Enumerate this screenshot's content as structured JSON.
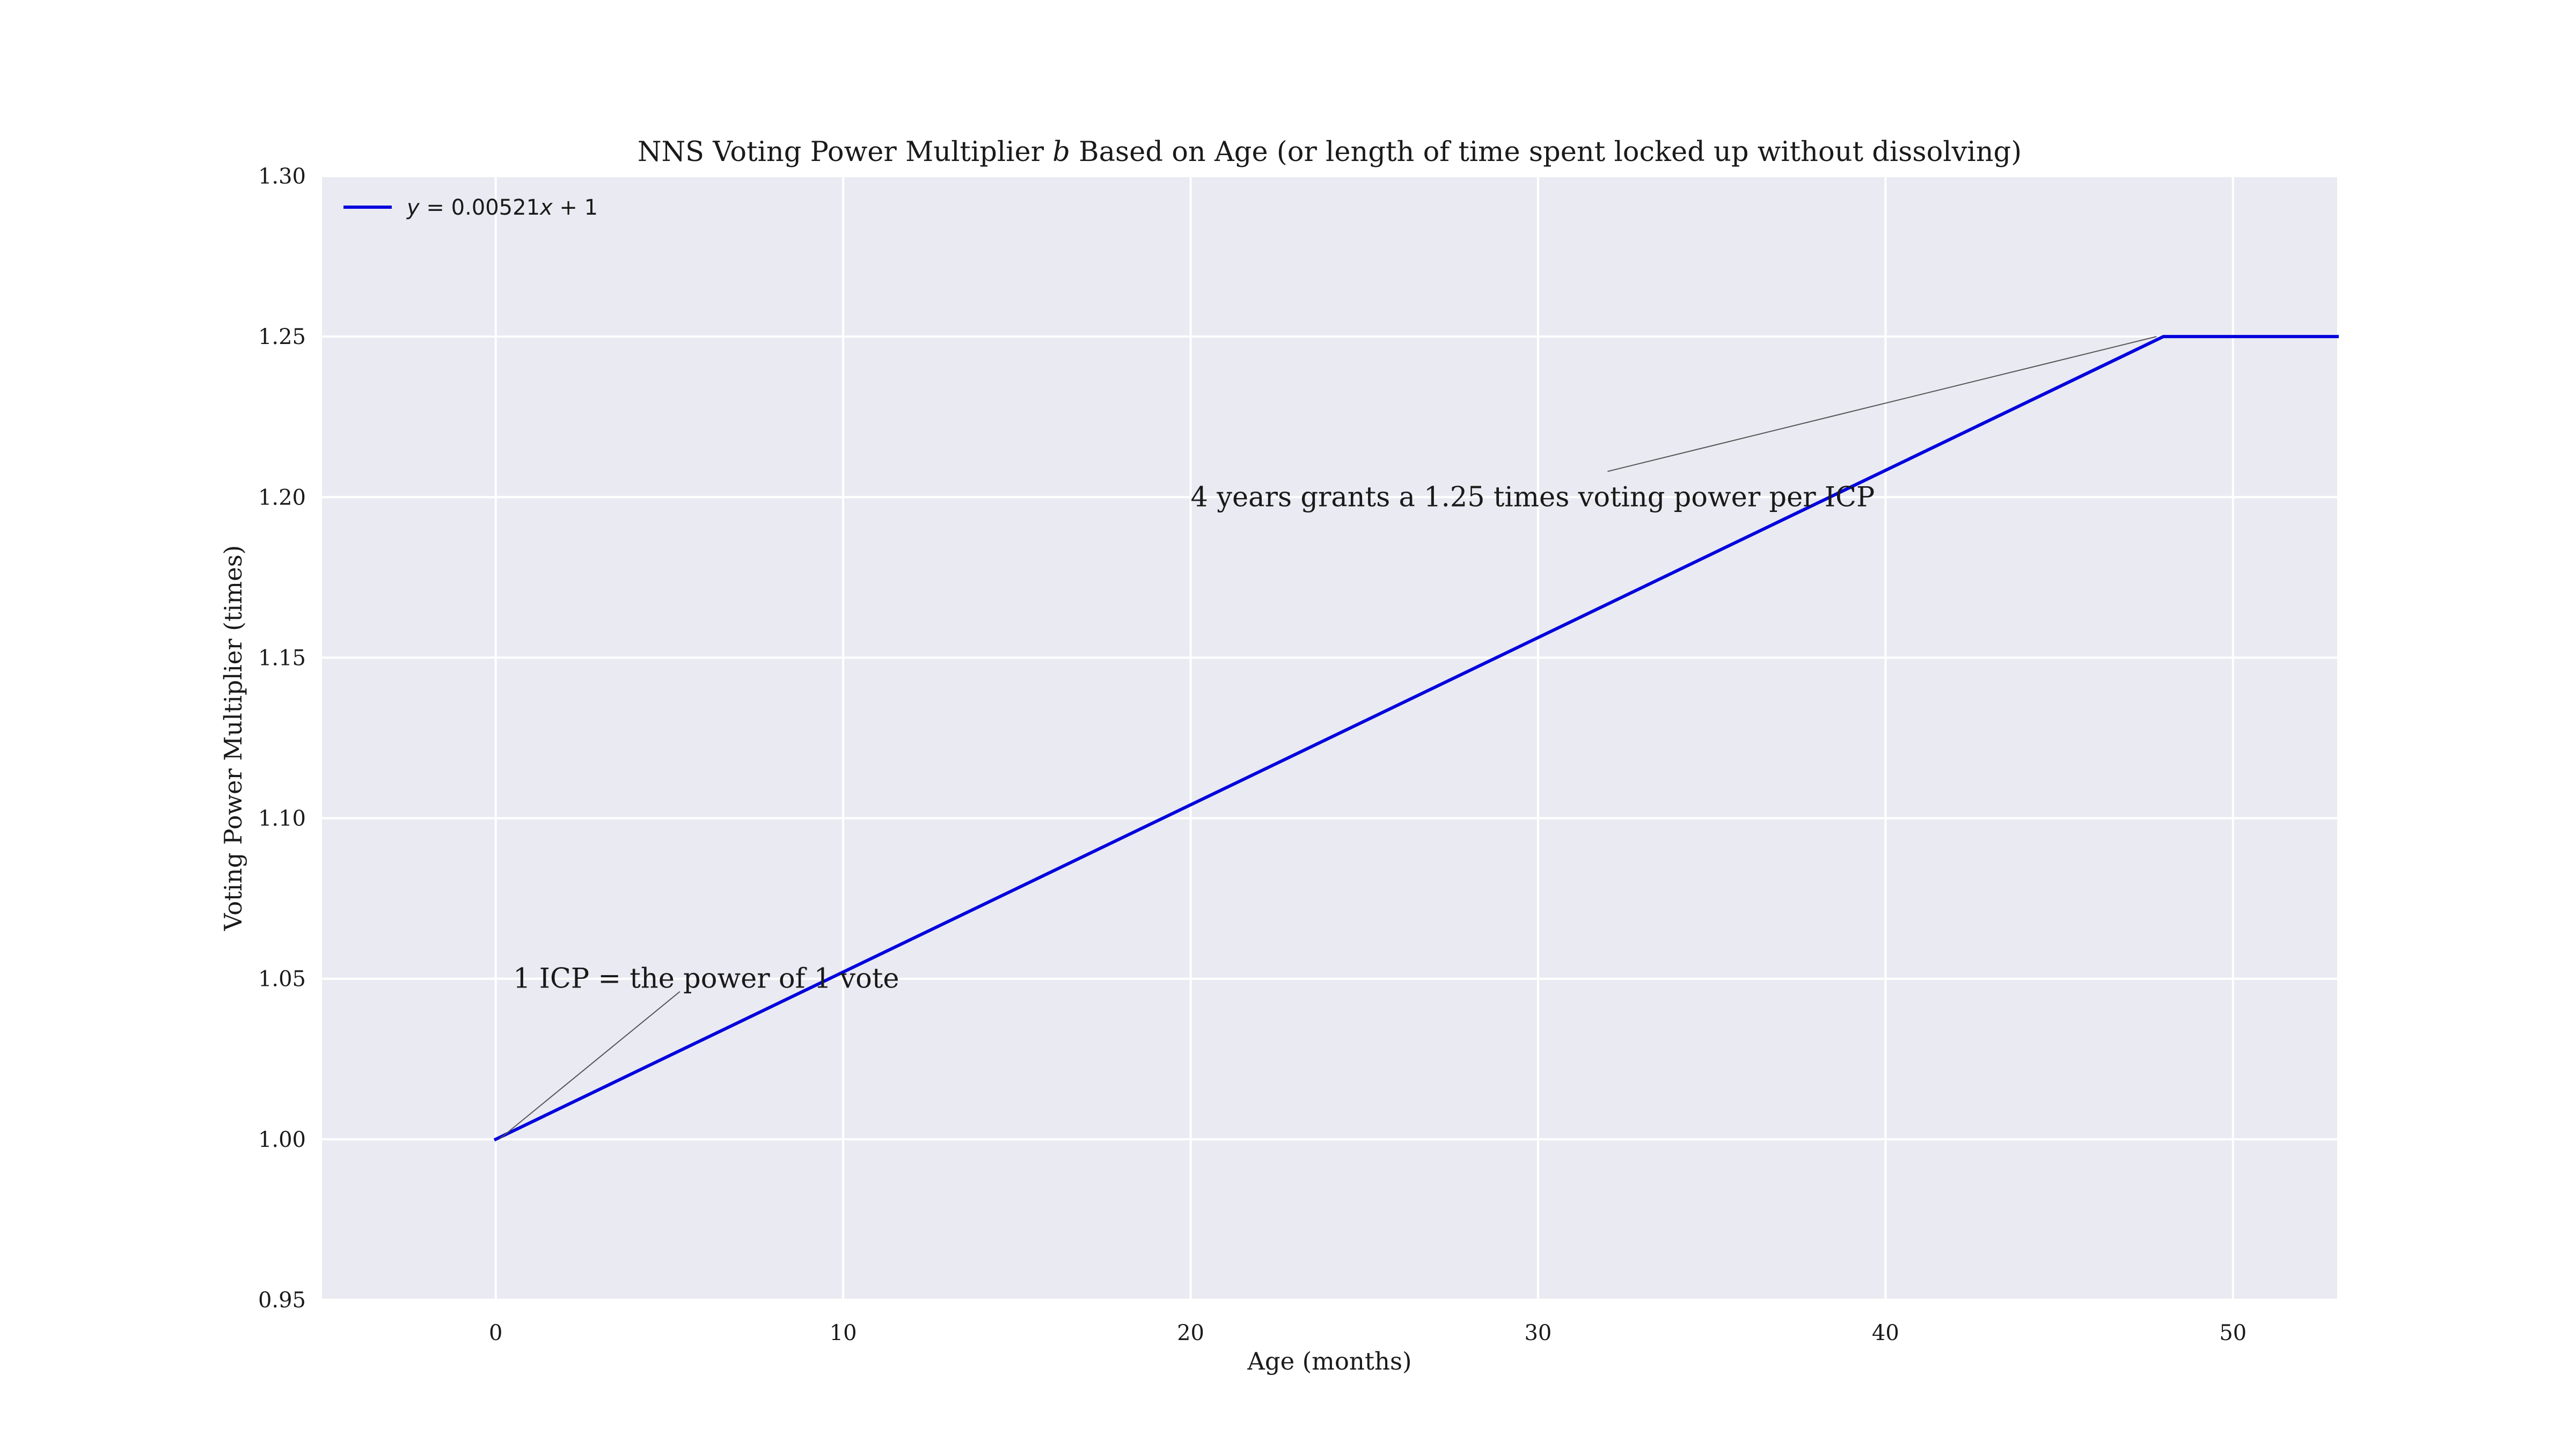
{
  "chart_data": {
    "type": "line",
    "title": {
      "before": "NNS Voting Power Multiplier ",
      "symbol": "b",
      "after": " Based on Age (or length of time spent locked up without dissolving)"
    },
    "xlabel": "Age (months)",
    "ylabel": "Voting Power Multiplier (times)",
    "xlim": [
      -5,
      53
    ],
    "ylim": [
      0.95,
      1.3
    ],
    "xticks": [
      0,
      10,
      20,
      30,
      40,
      50
    ],
    "xtick_labels": [
      "0",
      "10",
      "20",
      "30",
      "40",
      "50"
    ],
    "yticks": [
      0.95,
      1.0,
      1.05,
      1.1,
      1.15,
      1.2,
      1.25,
      1.3
    ],
    "ytick_labels": [
      "0.95",
      "1.00",
      "1.05",
      "1.10",
      "1.15",
      "1.20",
      "1.25",
      "1.30"
    ],
    "grid": true,
    "legend_position": "top-left",
    "series": [
      {
        "name": {
          "y": "y",
          "eq": " = 0.00521",
          "x": "x",
          "tail": " + 1"
        },
        "color": "#0000dd",
        "x": [
          0,
          48,
          53
        ],
        "y": [
          1.0,
          1.25,
          1.25
        ]
      }
    ],
    "annotations": [
      {
        "text": "1 ICP = the power of 1 vote",
        "text_at": [
          0.5,
          1.05
        ],
        "arrow_from": [
          5.3,
          1.046
        ],
        "arrow_to": [
          0.1,
          1.0
        ]
      },
      {
        "text": "4 years grants a 1.25 times voting power per ICP",
        "text_at": [
          20,
          1.2
        ],
        "arrow_from": [
          32,
          1.208
        ],
        "arrow_to": [
          47.8,
          1.25
        ]
      }
    ],
    "colors": {
      "plot_background": "#eaeaf2",
      "grid": "#ffffff",
      "line": "#0000dd",
      "annotation_arrow": "#555555"
    }
  }
}
